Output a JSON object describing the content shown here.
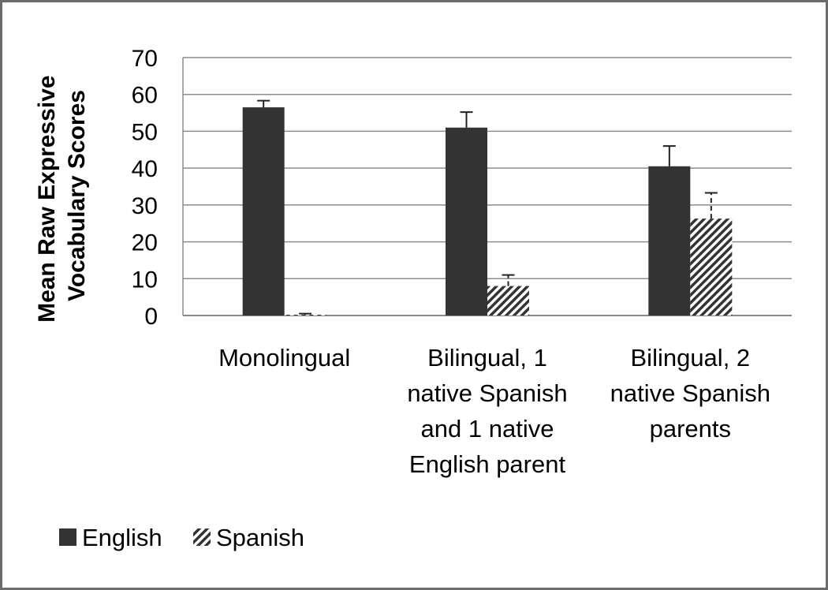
{
  "chart_data": {
    "type": "bar",
    "title": "",
    "xlabel": "",
    "ylabel": "Mean Raw Expressive Vocabulary Scores",
    "ylabel_lines": [
      "Mean Raw Expressive",
      "Vocabulary Scores"
    ],
    "ylim": [
      0,
      70
    ],
    "yticks": [
      0,
      10,
      20,
      30,
      40,
      50,
      60,
      70
    ],
    "grid": true,
    "legend_position": "bottom-left",
    "categories": [
      "Monolingual",
      "Bilingual, 1 native Spanish and 1 native English parent",
      "Bilingual, 2 native Spanish parents"
    ],
    "category_lines": [
      [
        "Monolingual"
      ],
      [
        "Bilingual, 1",
        "native Spanish",
        "and 1 native",
        "English parent"
      ],
      [
        "Bilingual, 2",
        "native Spanish",
        "parents"
      ]
    ],
    "series": [
      {
        "name": "English",
        "values": [
          56.5,
          51,
          40.5
        ],
        "error": [
          1.8,
          4.2,
          5.5
        ],
        "color": "#333333",
        "pattern": "solid"
      },
      {
        "name": "Spanish",
        "values": [
          0.2,
          8,
          26.3
        ],
        "error": [
          0.3,
          3,
          7
        ],
        "color": "#333333",
        "pattern": "diagonal-hatch"
      }
    ]
  }
}
